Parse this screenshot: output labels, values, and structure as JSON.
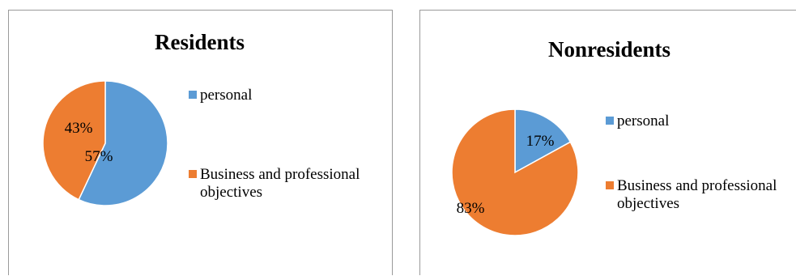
{
  "colors": {
    "personal": "#5b9bd5",
    "business": "#ed7d31",
    "border": "#9a9a9a"
  },
  "chart_data": [
    {
      "type": "pie",
      "title": "Residents",
      "categories": [
        "personal",
        "Business and professional objectives"
      ],
      "values": [
        57,
        43
      ],
      "labels": [
        "57%",
        "43%"
      ],
      "legend_position": "right"
    },
    {
      "type": "pie",
      "title": "Nonresidents",
      "categories": [
        "personal",
        "Business and professional objectives"
      ],
      "values": [
        17,
        83
      ],
      "labels": [
        "17%",
        "83%"
      ],
      "legend_position": "right"
    }
  ]
}
